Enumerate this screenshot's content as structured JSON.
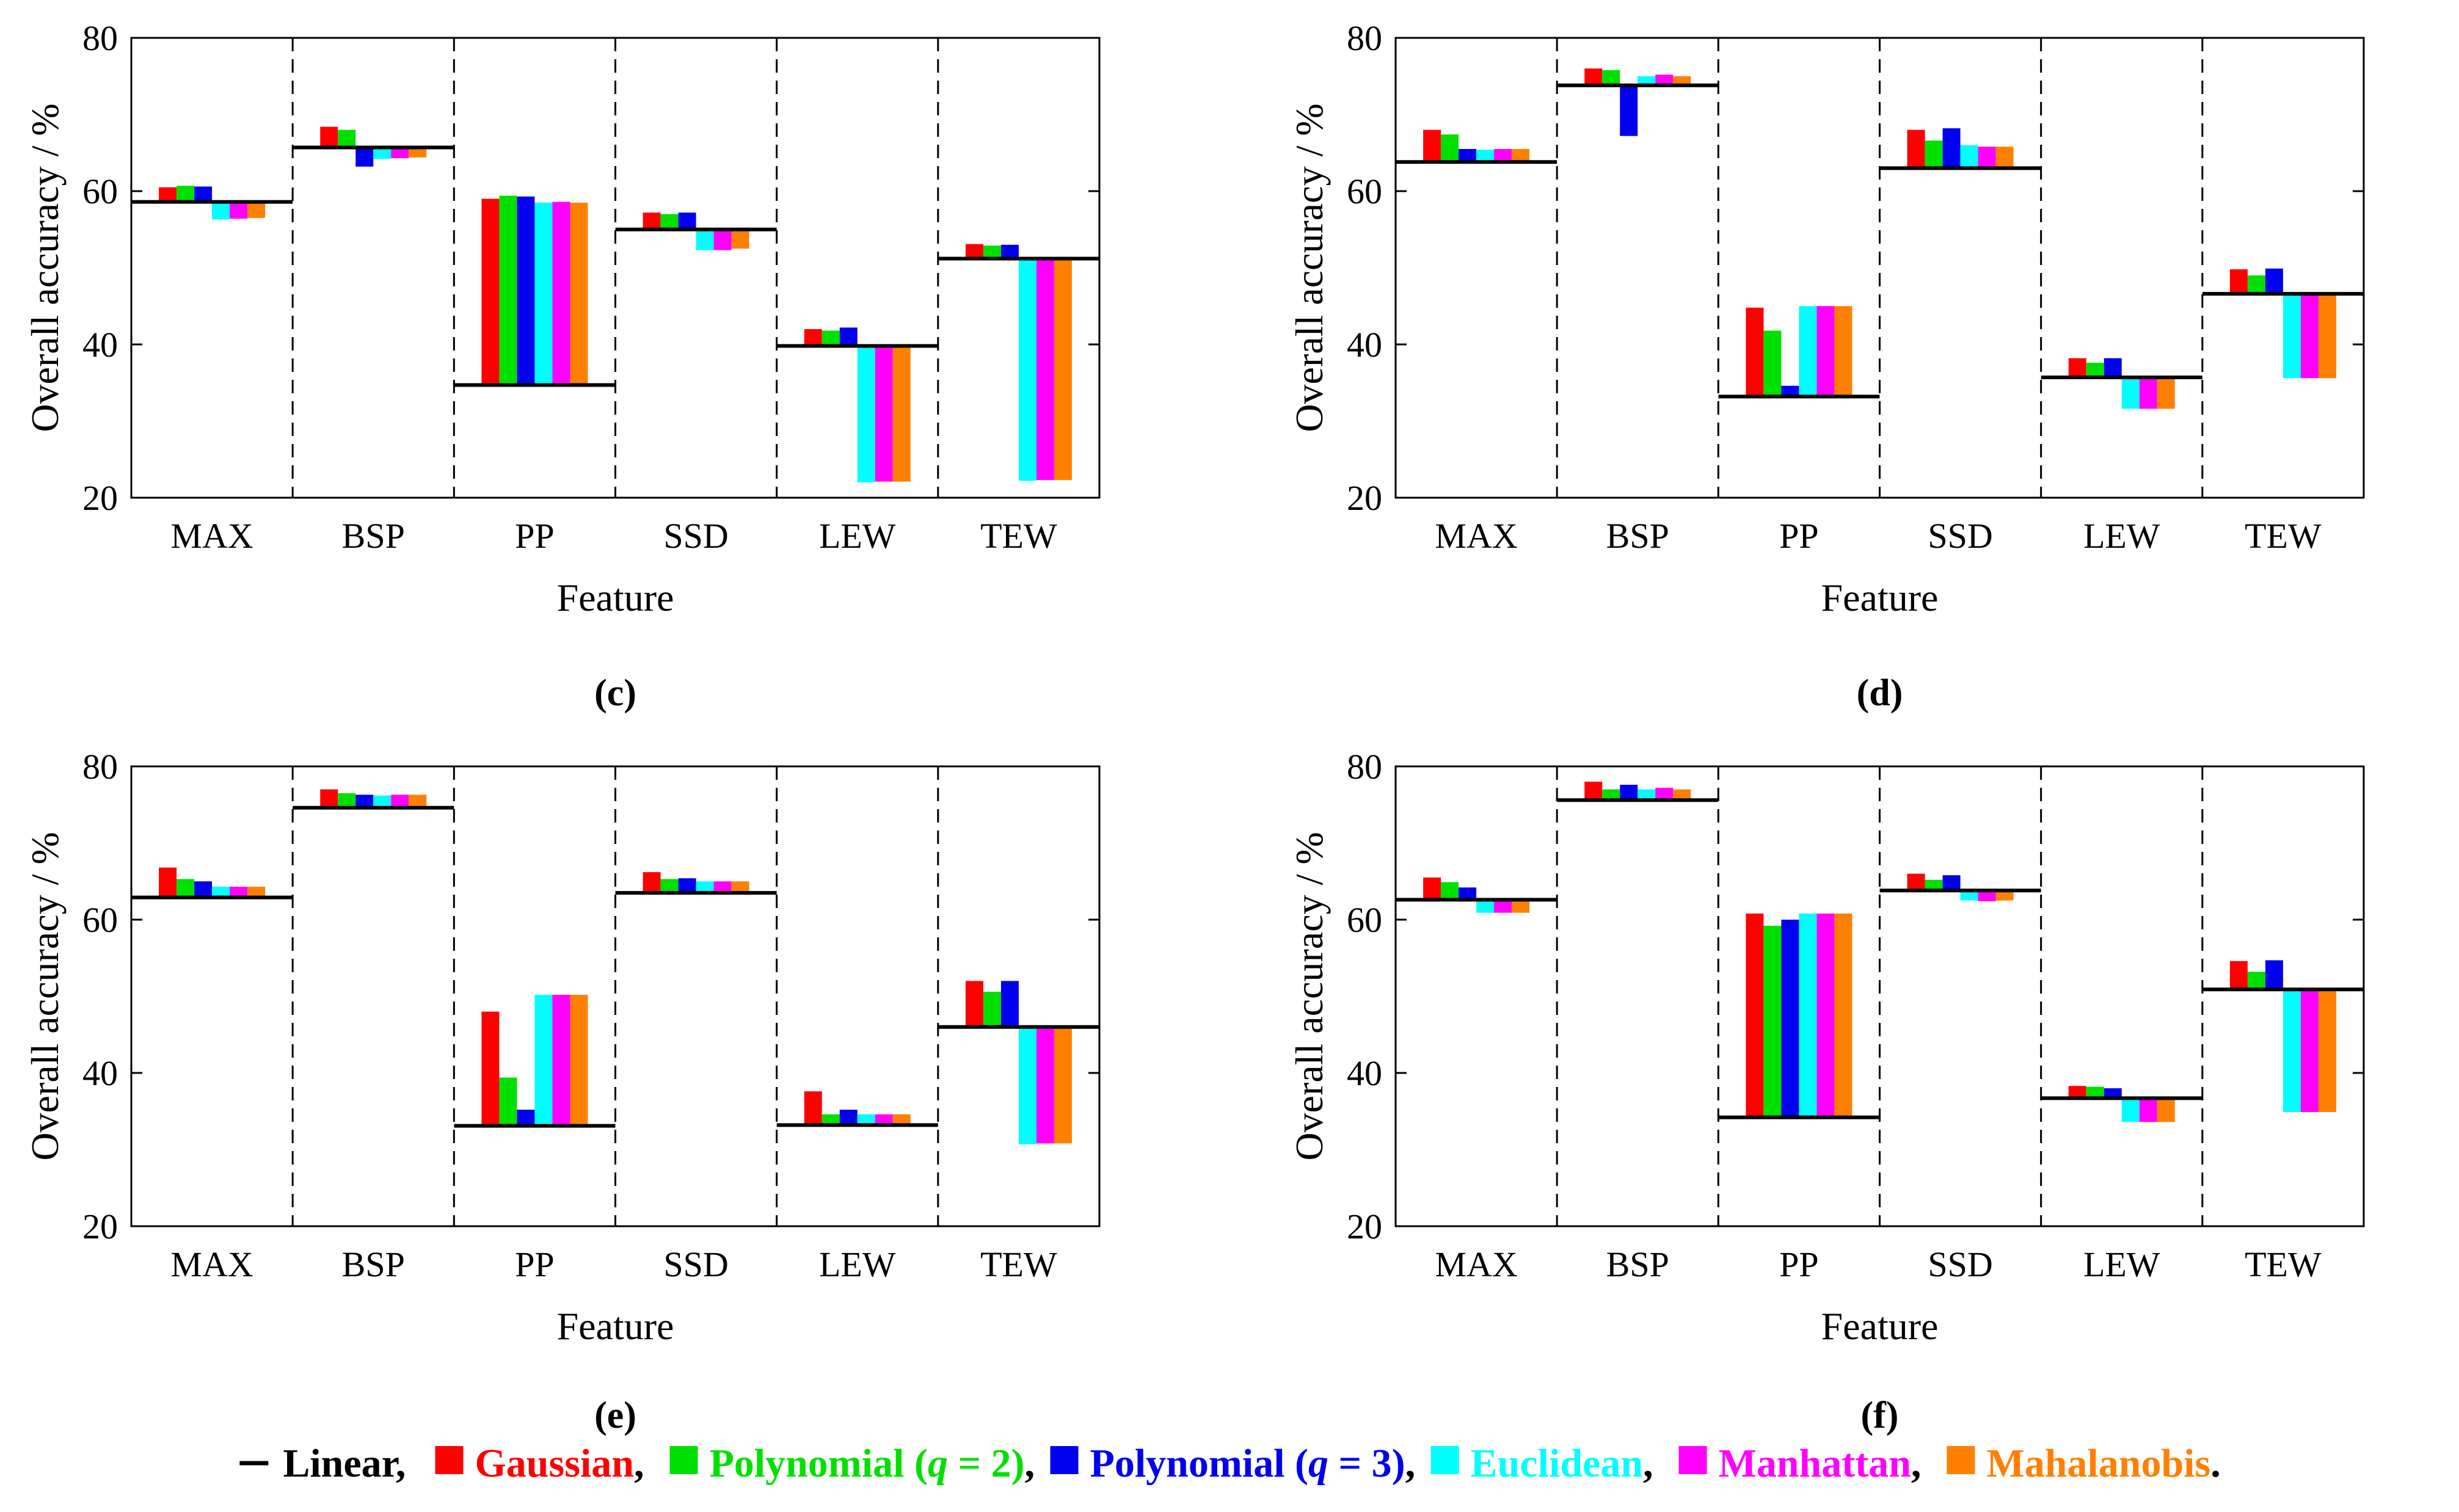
{
  "legend": {
    "items": [
      {
        "key": "linear",
        "label": "Linear",
        "color": "#000000",
        "kind": "line",
        "suffix": ","
      },
      {
        "key": "gaussian",
        "label": "Gaussian",
        "color": "#ff0000",
        "kind": "box",
        "suffix": ","
      },
      {
        "key": "poly2",
        "label": "Polynomial (",
        "italic": "q",
        "label_tail": " = 2)",
        "color": "#00e000",
        "kind": "box",
        "suffix": ","
      },
      {
        "key": "poly3",
        "label": "Polynomial (",
        "italic": "q",
        "label_tail": " = 3)",
        "color": "#0000ee",
        "kind": "box",
        "suffix": ","
      },
      {
        "key": "euclidean",
        "label": "Euclidean",
        "color": "#00ffff",
        "kind": "box",
        "suffix": ","
      },
      {
        "key": "manhattan",
        "label": "Manhattan",
        "color": "#ff00ff",
        "kind": "box",
        "suffix": ","
      },
      {
        "key": "mahalanobis",
        "label": "Mahalanobis",
        "color": "#ff8000",
        "kind": "box",
        "suffix": "."
      }
    ]
  },
  "chart_data": [
    {
      "type": "bar",
      "panel": "c",
      "panel_label": "(c)",
      "categories": [
        "MAX",
        "BSP",
        "PP",
        "SSD",
        "LEW",
        "TEW"
      ],
      "xlabel": "Feature",
      "ylabel": "Overall accuracy / %",
      "ylim": [
        20,
        80
      ],
      "yticks": [
        "20",
        "40",
        "60",
        "80"
      ],
      "baseline_linear": [
        58.6,
        65.7,
        34.7,
        55.0,
        39.8,
        51.2
      ],
      "series": [
        {
          "name": "Gaussian",
          "values": [
            60.5,
            68.4,
            59.0,
            57.2,
            42.0,
            53.1
          ]
        },
        {
          "name": "Polynomial (q = 2)",
          "values": [
            60.7,
            68.0,
            59.4,
            57.0,
            41.8,
            52.9
          ]
        },
        {
          "name": "Polynomial (q = 3)",
          "values": [
            60.6,
            63.2,
            59.3,
            57.2,
            42.2,
            53.0
          ]
        },
        {
          "name": "Euclidean",
          "values": [
            56.3,
            64.2,
            58.5,
            52.3,
            22.0,
            22.2
          ]
        },
        {
          "name": "Manhattan",
          "values": [
            56.4,
            64.3,
            58.6,
            52.3,
            22.1,
            22.3
          ]
        },
        {
          "name": "Mahalanobis",
          "values": [
            56.5,
            64.4,
            58.5,
            52.5,
            22.1,
            22.3
          ]
        }
      ]
    },
    {
      "type": "bar",
      "panel": "d",
      "panel_label": "(d)",
      "categories": [
        "MAX",
        "BSP",
        "PP",
        "SSD",
        "LEW",
        "TEW"
      ],
      "xlabel": "Feature",
      "ylabel": "Overall accuracy / %",
      "ylim": [
        20,
        80
      ],
      "yticks": [
        "20",
        "40",
        "60",
        "80"
      ],
      "baseline_linear": [
        63.8,
        73.8,
        33.2,
        63.0,
        35.7,
        46.6
      ],
      "series": [
        {
          "name": "Gaussian",
          "values": [
            68.0,
            76.0,
            44.8,
            68.0,
            38.2,
            49.8
          ]
        },
        {
          "name": "Polynomial (q = 2)",
          "values": [
            67.4,
            75.8,
            41.8,
            66.6,
            37.6,
            49.0
          ]
        },
        {
          "name": "Polynomial (q = 3)",
          "values": [
            65.5,
            67.2,
            34.6,
            68.2,
            38.2,
            49.9
          ]
        },
        {
          "name": "Euclidean",
          "values": [
            65.4,
            75.0,
            45.0,
            66.0,
            31.6,
            35.6
          ]
        },
        {
          "name": "Manhattan",
          "values": [
            65.5,
            75.2,
            45.0,
            65.8,
            31.6,
            35.6
          ]
        },
        {
          "name": "Mahalanobis",
          "values": [
            65.5,
            75.0,
            45.0,
            65.8,
            31.6,
            35.6
          ]
        }
      ]
    },
    {
      "type": "bar",
      "panel": "e",
      "panel_label": "(e)",
      "categories": [
        "MAX",
        "BSP",
        "PP",
        "SSD",
        "LEW",
        "TEW"
      ],
      "xlabel": "Feature",
      "ylabel": "Overall accuracy / %",
      "ylim": [
        20,
        80
      ],
      "yticks": [
        "20",
        "40",
        "60",
        "80"
      ],
      "baseline_linear": [
        62.9,
        74.6,
        33.1,
        63.5,
        33.2,
        46.0
      ],
      "series": [
        {
          "name": "Gaussian",
          "values": [
            66.8,
            77.0,
            48.0,
            66.2,
            37.6,
            52.0
          ]
        },
        {
          "name": "Polynomial (q = 2)",
          "values": [
            65.3,
            76.5,
            39.4,
            65.3,
            34.6,
            50.6
          ]
        },
        {
          "name": "Polynomial (q = 3)",
          "values": [
            65.0,
            76.3,
            35.2,
            65.4,
            35.2,
            52.0
          ]
        },
        {
          "name": "Euclidean",
          "values": [
            64.3,
            76.2,
            50.2,
            65.0,
            34.6,
            30.7
          ]
        },
        {
          "name": "Manhattan",
          "values": [
            64.3,
            76.3,
            50.2,
            65.0,
            34.6,
            30.8
          ]
        },
        {
          "name": "Mahalanobis",
          "values": [
            64.3,
            76.3,
            50.2,
            65.0,
            34.6,
            30.8
          ]
        }
      ]
    },
    {
      "type": "bar",
      "panel": "f",
      "panel_label": "(f)",
      "categories": [
        "MAX",
        "BSP",
        "PP",
        "SSD",
        "LEW",
        "TEW"
      ],
      "xlabel": "Feature",
      "ylabel": "Overall accuracy / %",
      "ylim": [
        20,
        80
      ],
      "yticks": [
        "20",
        "40",
        "60",
        "80"
      ],
      "baseline_linear": [
        62.6,
        75.6,
        34.2,
        63.8,
        36.7,
        50.9
      ],
      "series": [
        {
          "name": "Gaussian",
          "values": [
            65.5,
            78.0,
            60.8,
            66.0,
            38.3,
            54.6
          ]
        },
        {
          "name": "Polynomial (q = 2)",
          "values": [
            64.9,
            77.0,
            59.2,
            65.2,
            38.2,
            53.2
          ]
        },
        {
          "name": "Polynomial (q = 3)",
          "values": [
            64.2,
            77.6,
            60.0,
            65.8,
            38.0,
            54.7
          ]
        },
        {
          "name": "Euclidean",
          "values": [
            60.9,
            77.0,
            60.8,
            62.5,
            33.6,
            34.9
          ]
        },
        {
          "name": "Manhattan",
          "values": [
            60.9,
            77.2,
            60.8,
            62.4,
            33.6,
            34.9
          ]
        },
        {
          "name": "Mahalanobis",
          "values": [
            60.9,
            77.0,
            60.8,
            62.5,
            33.6,
            34.9
          ]
        }
      ]
    }
  ]
}
